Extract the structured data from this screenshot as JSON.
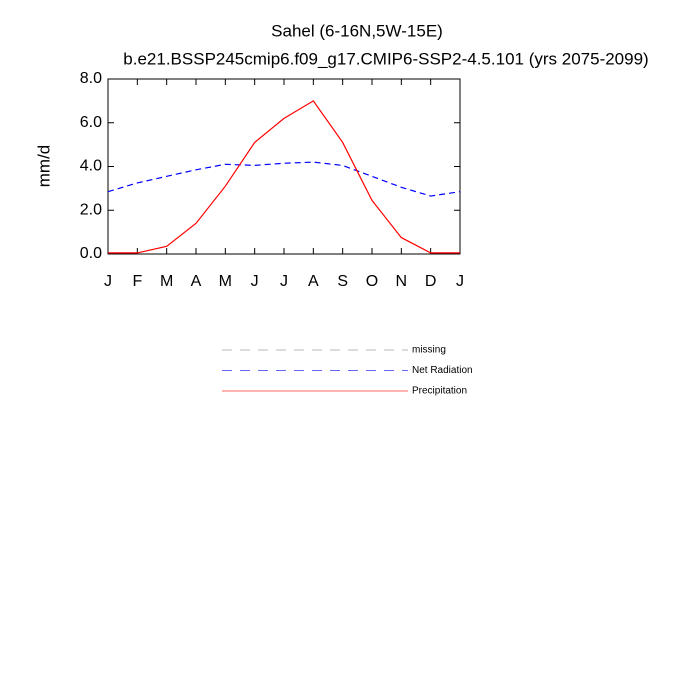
{
  "chart_data": {
    "type": "line",
    "title": "Sahel (6-16N,5W-15E)",
    "subtitle": "b.e21.BSSP245cmip6.f09_g17.CMIP6-SSP2-4.5.101 (yrs 2075-2099)",
    "y_label": "mm/d",
    "categories": [
      "J",
      "F",
      "M",
      "A",
      "M",
      "J",
      "J",
      "A",
      "S",
      "O",
      "N",
      "D",
      "J"
    ],
    "ylim": [
      0,
      8
    ],
    "yticks": [
      {
        "value": 0,
        "label": "0.0"
      },
      {
        "value": 2,
        "label": "2.0"
      },
      {
        "value": 4,
        "label": "4.0"
      },
      {
        "value": 6,
        "label": "6.0"
      },
      {
        "value": 8,
        "label": "8.0"
      }
    ],
    "series": [
      {
        "name": "missing",
        "color": "#888888",
        "dash": true,
        "values": [
          null,
          null,
          null,
          null,
          null,
          null,
          null,
          null,
          null,
          null,
          null,
          null,
          null
        ]
      },
      {
        "name": "Net Radiation",
        "color": "#0000ff",
        "dash": true,
        "values": [
          2.85,
          3.25,
          3.55,
          3.85,
          4.1,
          4.05,
          4.15,
          4.2,
          4.05,
          3.55,
          3.05,
          2.65,
          2.85
        ]
      },
      {
        "name": "Precipitation",
        "color": "#ff0000",
        "dash": false,
        "values": [
          0.05,
          0.05,
          0.35,
          1.4,
          3.1,
          5.1,
          6.2,
          7.0,
          5.1,
          2.45,
          0.75,
          0.05,
          0.05
        ]
      }
    ]
  }
}
